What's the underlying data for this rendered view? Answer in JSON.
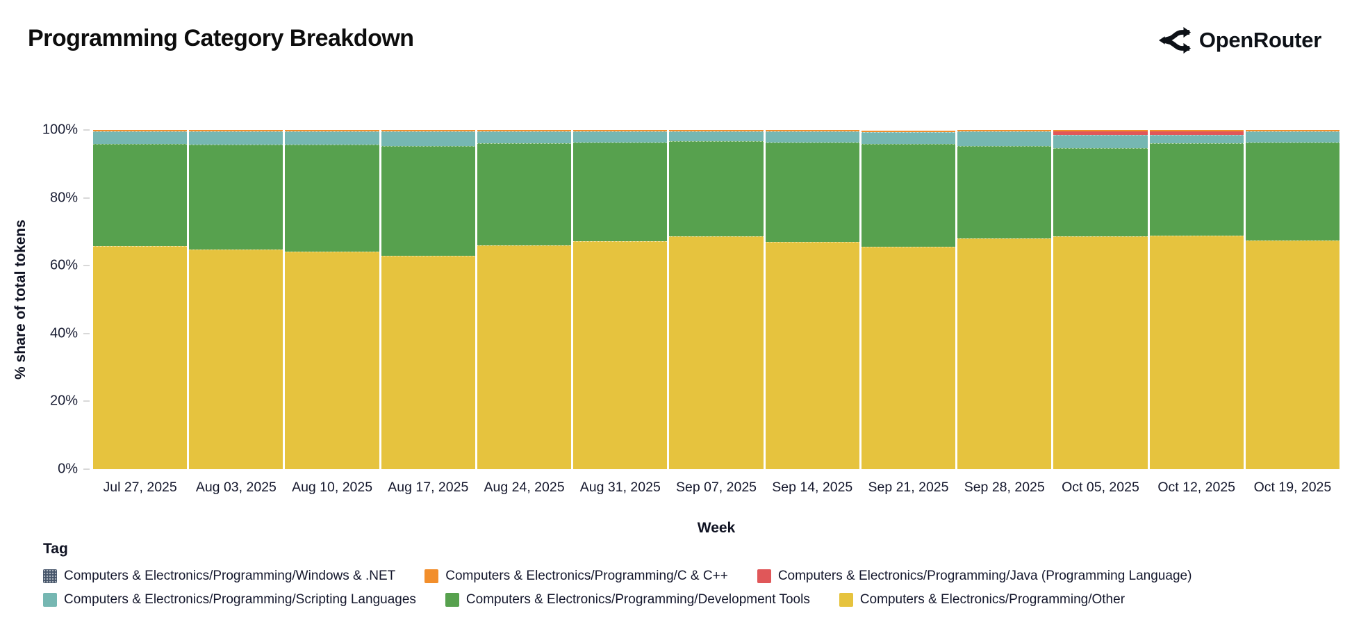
{
  "header": {
    "title": "Programming Category Breakdown",
    "logo_text": "OpenRouter"
  },
  "chart_data": {
    "type": "bar",
    "variant": "stacked-100pct",
    "title": "Programming Category Breakdown",
    "xlabel": "Week",
    "ylabel": "% share of total tokens",
    "ylim": [
      0,
      100
    ],
    "y_ticks_top_to_bottom": [
      "100%",
      "80%",
      "60%",
      "40%",
      "20%",
      "0%"
    ],
    "grid": false,
    "legend_position": "bottom",
    "categories": [
      "Jul 27, 2025",
      "Aug 03, 2025",
      "Aug 10, 2025",
      "Aug 17, 2025",
      "Aug 24, 2025",
      "Aug 31, 2025",
      "Sep 07, 2025",
      "Sep 14, 2025",
      "Sep 21, 2025",
      "Sep 28, 2025",
      "Oct 05, 2025",
      "Oct 12, 2025",
      "Oct 19, 2025"
    ],
    "series_bottom_to_top": [
      {
        "name": "Computers & Electronics/Programming/Other",
        "color": "#E6C33E",
        "separator": true,
        "values": [
          65.8,
          64.8,
          64.1,
          62.9,
          66.0,
          67.2,
          68.6,
          67.0,
          65.6,
          68.0,
          68.6,
          68.9,
          67.4
        ]
      },
      {
        "name": "Computers & Electronics/Programming/Development Tools",
        "color": "#57A14E",
        "separator": true,
        "values": [
          30.1,
          30.9,
          31.6,
          32.4,
          30.1,
          29.1,
          28.1,
          29.3,
          30.3,
          27.3,
          26.1,
          27.2,
          28.9
        ]
      },
      {
        "name": "Computers & Electronics/Programming/Scripting Languages",
        "color": "#76B7B2",
        "separator": true,
        "values": [
          3.7,
          3.9,
          3.9,
          4.3,
          3.5,
          3.3,
          2.9,
          3.3,
          3.5,
          4.3,
          3.9,
          2.5,
          3.3
        ]
      },
      {
        "name": "Computers & Electronics/Programming/Java (Programming Language)",
        "color": "#E05759",
        "separator": false,
        "values": [
          0,
          0,
          0,
          0,
          0,
          0,
          0,
          0,
          0,
          0,
          1.0,
          1.0,
          0
        ]
      },
      {
        "name": "Computers & Electronics/Programming/C & C++",
        "color": "#F28E2B",
        "separator": false,
        "values": [
          0.4,
          0.4,
          0.4,
          0.4,
          0.4,
          0.4,
          0.4,
          0.4,
          0.4,
          0.4,
          0.4,
          0.4,
          0.4
        ]
      },
      {
        "name": "Computers & Electronics/Programming/Windows & .NET",
        "color": "#47566B",
        "separator": false,
        "values": [
          0,
          0,
          0,
          0,
          0,
          0,
          0,
          0,
          0,
          0,
          0,
          0,
          0
        ]
      }
    ]
  },
  "legend": {
    "title": "Tag",
    "rows": [
      [
        {
          "label": "Computers & Electronics/Programming/Windows & .NET",
          "color": "#47566B",
          "pattern": true
        },
        {
          "label": "Computers & Electronics/Programming/C & C++",
          "color": "#F28E2B",
          "pattern": false
        },
        {
          "label": "Computers & Electronics/Programming/Java (Programming Language)",
          "color": "#E05759",
          "pattern": false
        }
      ],
      [
        {
          "label": "Computers & Electronics/Programming/Scripting Languages",
          "color": "#76B7B2",
          "pattern": false
        },
        {
          "label": "Computers & Electronics/Programming/Development Tools",
          "color": "#57A14E",
          "pattern": false
        },
        {
          "label": "Computers & Electronics/Programming/Other",
          "color": "#E6C33E",
          "pattern": false
        }
      ]
    ]
  }
}
